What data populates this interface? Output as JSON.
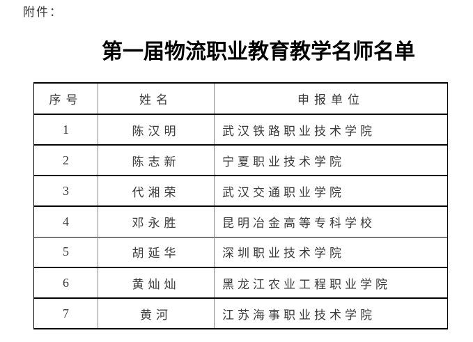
{
  "page": {
    "attachment_label": "附件：",
    "title": "第一届物流职业教育教学名师名单"
  },
  "table": {
    "columns": [
      "序号",
      "姓名",
      "申报单位"
    ],
    "rows": [
      {
        "no": "1",
        "name": "陈汉明",
        "unit": "武汉铁路职业技术学院"
      },
      {
        "no": "2",
        "name": "陈志新",
        "unit": "宁夏职业技术学院"
      },
      {
        "no": "3",
        "name": "代湘荣",
        "unit": "武汉交通职业学院"
      },
      {
        "no": "4",
        "name": "邓永胜",
        "unit": "昆明冶金高等专科学校"
      },
      {
        "no": "5",
        "name": "胡延华",
        "unit": "深圳职业技术学院"
      },
      {
        "no": "6",
        "name": "黄灿灿",
        "unit": "黑龙江农业工程职业学院"
      },
      {
        "no": "7",
        "name": "黄河",
        "unit": "江苏海事职业技术学院"
      }
    ]
  },
  "colors": {
    "background": "#ffffff",
    "text": "#3a3a3a",
    "title_text": "#000000",
    "border_horizontal": "#000000",
    "border_vertical": "#8a8a8a"
  }
}
